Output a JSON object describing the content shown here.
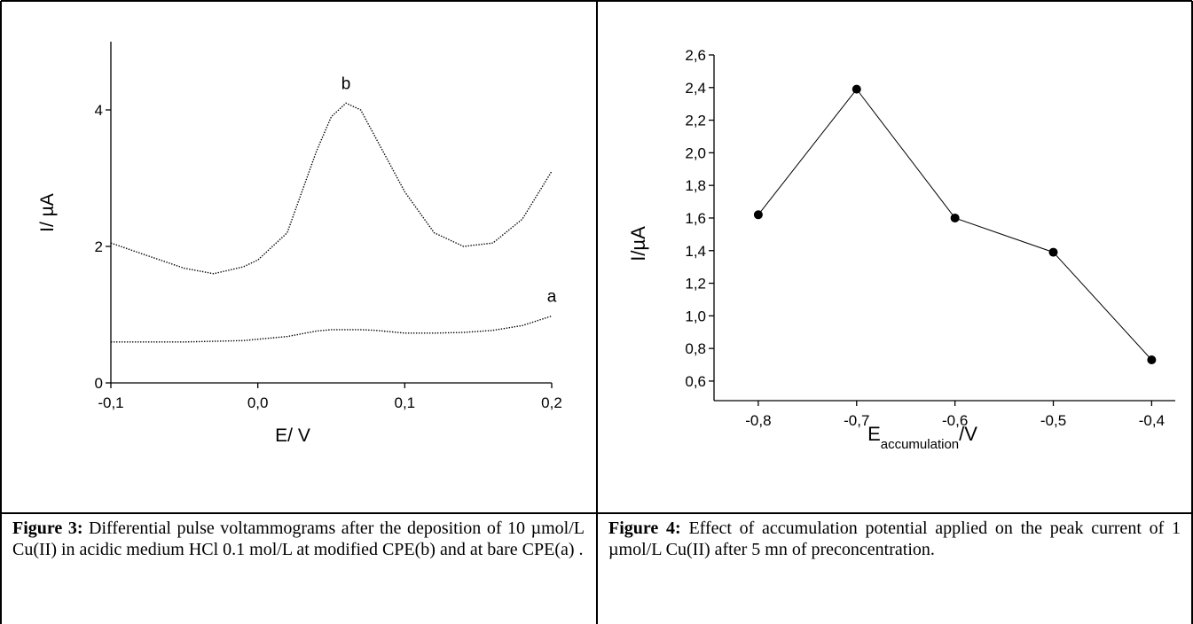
{
  "chart_data": [
    {
      "type": "line",
      "xlabel": "E/ V",
      "ylabel": "I/ µA",
      "line_style": "dotted",
      "x": [
        -0.1,
        -0.08,
        -0.05,
        -0.03,
        -0.01,
        0,
        0.02,
        0.03,
        0.04,
        0.05,
        0.06,
        0.07,
        0.08,
        0.1,
        0.12,
        0.14,
        0.16,
        0.18,
        0.2
      ],
      "series": [
        {
          "name": "a",
          "color": "#000000",
          "values": [
            0.6,
            0.6,
            0.6,
            0.61,
            0.62,
            0.64,
            0.68,
            0.72,
            0.76,
            0.78,
            0.78,
            0.78,
            0.77,
            0.73,
            0.73,
            0.74,
            0.77,
            0.84,
            0.98
          ]
        },
        {
          "name": "b",
          "color": "#000000",
          "values": [
            2.05,
            1.9,
            1.68,
            1.6,
            1.7,
            1.8,
            2.2,
            2.8,
            3.4,
            3.9,
            4.1,
            4.0,
            3.6,
            2.8,
            2.2,
            2.0,
            2.05,
            2.4,
            3.1
          ]
        }
      ],
      "xlim": [
        -0.1,
        0.2
      ],
      "xticks": [
        {
          "value": -0.1,
          "label": "-0,1"
        },
        {
          "value": 0,
          "label": "0,0"
        },
        {
          "value": 0.1,
          "label": "0,1"
        },
        {
          "value": 0.2,
          "label": "0,2"
        }
      ],
      "ylim": [
        0,
        5
      ],
      "yticks": [
        0,
        2,
        4
      ]
    },
    {
      "type": "line",
      "ylabel": "I/µA",
      "xlabel": "E",
      "xlabel_sub": "accumulation",
      "xlabel_suffix": "/V",
      "line_style": "solid",
      "marker": "circle",
      "x": [
        -0.8,
        -0.7,
        -0.6,
        -0.5,
        -0.4
      ],
      "series": [
        {
          "color": "#000000",
          "values": [
            1.62,
            2.39,
            1.6,
            1.39,
            0.73
          ]
        }
      ],
      "xlim": [
        -0.845,
        -0.376
      ],
      "xticks": [
        {
          "value": -0.8,
          "label": "-0,8"
        },
        {
          "value": -0.7,
          "label": "-0,7"
        },
        {
          "value": -0.6,
          "label": "-0,6"
        },
        {
          "value": -0.5,
          "label": "-0,5"
        },
        {
          "value": -0.4,
          "label": "-0,4"
        }
      ],
      "ylim": [
        0.48,
        2.6
      ],
      "yticks": [
        {
          "value": 0.6,
          "label": "0,6"
        },
        {
          "value": 0.8,
          "label": "0,8"
        },
        {
          "value": 1.0,
          "label": "1,0"
        },
        {
          "value": 1.2,
          "label": "1,2"
        },
        {
          "value": 1.4,
          "label": "1,4"
        },
        {
          "value": 1.6,
          "label": "1,6"
        },
        {
          "value": 1.8,
          "label": "1,8"
        },
        {
          "value": 2.0,
          "label": "2,0"
        },
        {
          "value": 2.2,
          "label": "2,2"
        },
        {
          "value": 2.4,
          "label": "2,4"
        },
        {
          "value": 2.6,
          "label": "2,6"
        }
      ]
    }
  ],
  "captions": [
    {
      "label": "Figure 3:",
      "text": "Differential pulse voltammograms after the deposition of 10 µmol/L Cu(II) in acidic medium HCl 0.1 mol/L at modified CPE(b) and at bare CPE(a) ."
    },
    {
      "label": "Figure 4:",
      "text": "Effect of accumulation potential applied on the peak current of 1 µmol/L Cu(II) after 5 mn of preconcentration."
    }
  ]
}
